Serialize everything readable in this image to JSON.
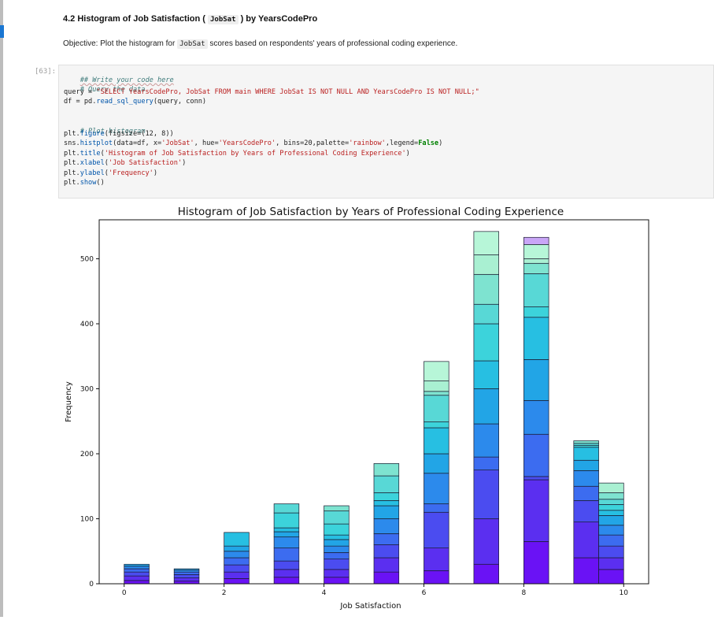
{
  "notebook": {
    "heading_prefix": "4.2 Histogram of Job Satisfaction (",
    "heading_code": "JobSat",
    "heading_suffix": ") by YearsCodePro",
    "objective_prefix": "Objective: Plot the histogram for",
    "objective_code": "JobSat",
    "objective_suffix": "scores based on respondents' years of professional coding experience.",
    "cell_prompt": "[63]:",
    "code": {
      "l1": "## Write your code here",
      "l2": "# Query the data",
      "l3_a": "query = ",
      "l3_b": "\"SELECT YearsCodePro, JobSat FROM main WHERE JobSat IS NOT NULL AND YearsCodePro IS NOT NULL;\"",
      "l4_a": "df = pd.",
      "l4_b": "read_sql_query",
      "l4_c": "(query, conn)",
      "l5": "# Plot histogram",
      "l6_a": "plt.",
      "l6_b": "figure",
      "l6_c": "(figsize=(12, 8))",
      "l7_a": "sns.",
      "l7_b": "histplot",
      "l7_c": "(data=df, x=",
      "l7_d": "'JobSat'",
      "l7_e": ", hue=",
      "l7_f": "'YearsCodePro'",
      "l7_g": ", bins=20,palette=",
      "l7_h": "'rainbow'",
      "l7_i": ",legend=",
      "l7_j": "False",
      "l7_k": ")",
      "l8_a": "plt.",
      "l8_b": "title",
      "l8_c": "(",
      "l8_d": "'Histogram of Job Satisfaction by Years of Professional Coding Experience'",
      "l8_e": ")",
      "l9_a": "plt.",
      "l9_b": "xlabel",
      "l9_c": "(",
      "l9_d": "'Job Satisfaction'",
      "l9_e": ")",
      "l10_a": "plt.",
      "l10_b": "ylabel",
      "l10_c": "(",
      "l10_d": "'Frequency'",
      "l10_e": ")",
      "l11_a": "plt.",
      "l11_b": "show",
      "l11_c": "()"
    }
  },
  "chart_data": {
    "type": "bar",
    "stacked": true,
    "title": "Histogram of Job Satisfaction by Years of Professional Coding Experience",
    "xlabel": "Job Satisfaction",
    "ylabel": "Frequency",
    "xlim": [
      -0.5,
      10.5
    ],
    "ylim": [
      0,
      560
    ],
    "xticks": [
      0,
      2,
      4,
      6,
      8,
      10
    ],
    "yticks": [
      0,
      100,
      200,
      300,
      400,
      500
    ],
    "grid": false,
    "legend": false,
    "bins": [
      {
        "x0": 0.0,
        "x1": 0.5,
        "total": 30,
        "breaks": [
          5,
          12,
          18,
          23,
          27
        ]
      },
      {
        "x0": 1.0,
        "x1": 1.5,
        "total": 23,
        "breaks": [
          4,
          9,
          14,
          18,
          21
        ]
      },
      {
        "x0": 2.0,
        "x1": 2.5,
        "total": 79,
        "breaks": [
          8,
          18,
          29,
          40,
          50,
          58
        ]
      },
      {
        "x0": 3.0,
        "x1": 3.5,
        "total": 123,
        "breaks": [
          10,
          22,
          35,
          55,
          72,
          80,
          86,
          109
        ]
      },
      {
        "x0": 4.0,
        "x1": 4.5,
        "total": 120,
        "breaks": [
          10,
          22,
          38,
          48,
          58,
          68,
          75,
          92,
          112
        ]
      },
      {
        "x0": 5.0,
        "x1": 5.5,
        "total": 185,
        "breaks": [
          18,
          40,
          60,
          77,
          100,
          120,
          128,
          140,
          166
        ]
      },
      {
        "x0": 6.0,
        "x1": 6.5,
        "total": 342,
        "breaks": [
          20,
          55,
          110,
          123,
          170,
          200,
          240,
          249,
          290,
          296,
          312
        ]
      },
      {
        "x0": 7.0,
        "x1": 7.5,
        "total": 542,
        "breaks": [
          30,
          100,
          175,
          195,
          246,
          300,
          343,
          400,
          430,
          476,
          506
        ]
      },
      {
        "x0": 8.0,
        "x1": 8.5,
        "total": 533,
        "breaks": [
          65,
          160,
          165,
          230,
          282,
          345,
          410,
          426,
          477,
          493,
          500,
          522
        ]
      },
      {
        "x0": 9.0,
        "x1": 9.5,
        "total": 220,
        "breaks": [
          40,
          95,
          128,
          150,
          174,
          190,
          210,
          213,
          216
        ]
      },
      {
        "x0": 9.5,
        "x1": 10.0,
        "total": 155,
        "breaks": [
          22,
          40,
          58,
          75,
          90,
          105,
          113,
          122,
          130,
          140
        ]
      }
    ],
    "colors": [
      "#6a12f5",
      "#5b2ff0",
      "#4b4cf0",
      "#3c6cf0",
      "#2c8aec",
      "#22a5e6",
      "#27bfe2",
      "#3cd3db",
      "#58d8d6",
      "#7ee3d0",
      "#a9f0d2",
      "#b7f6d8",
      "#c9a6f7"
    ]
  }
}
